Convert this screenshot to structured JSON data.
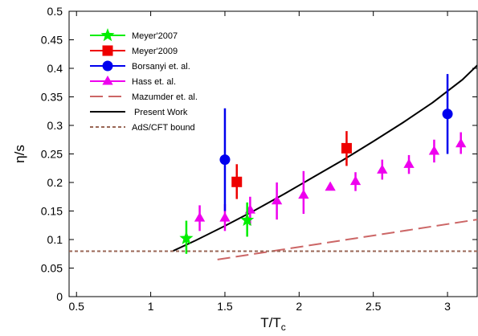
{
  "chart_data": {
    "type": "scatter",
    "xlabel": "T/T",
    "xlabel_sub": "c",
    "ylabel": "η/s",
    "xlim": [
      0.45,
      3.2
    ],
    "ylim": [
      0,
      0.5
    ],
    "xticks": [
      0.5,
      1,
      1.5,
      2,
      2.5,
      3
    ],
    "xtick_labels": [
      "0.5",
      "1",
      "1.5",
      "2",
      "2.5",
      "3"
    ],
    "yticks": [
      0,
      0.05,
      0.1,
      0.15,
      0.2,
      0.25,
      0.3,
      0.35,
      0.4,
      0.45,
      0.5
    ],
    "ytick_labels": [
      "0",
      "0.05",
      "0.1",
      "0.15",
      "0.2",
      "0.25",
      "0.3",
      "0.35",
      "0.4",
      "0.45",
      "0.5"
    ],
    "legend_position": "top-left",
    "series": [
      {
        "name": "Meyer'2007",
        "marker": "star",
        "color": "#00ee00",
        "points": [
          {
            "x": 1.24,
            "y": 0.102,
            "ylo": 0.075,
            "yhi": 0.133
          },
          {
            "x": 1.65,
            "y": 0.134,
            "ylo": 0.105,
            "yhi": 0.165
          }
        ]
      },
      {
        "name": "Meyer'2009",
        "marker": "square",
        "color": "#ee0000",
        "points": [
          {
            "x": 1.58,
            "y": 0.201,
            "ylo": 0.171,
            "yhi": 0.232
          },
          {
            "x": 2.32,
            "y": 0.26,
            "ylo": 0.229,
            "yhi": 0.29
          }
        ]
      },
      {
        "name": "Borsanyi et. al.",
        "marker": "circle",
        "color": "#0000ee",
        "points": [
          {
            "x": 1.5,
            "y": 0.24,
            "ylo": 0.15,
            "yhi": 0.33
          },
          {
            "x": 3.0,
            "y": 0.32,
            "ylo": 0.25,
            "yhi": 0.39
          }
        ]
      },
      {
        "name": "Hass et. al.",
        "marker": "triangle",
        "color": "#ee00ee",
        "points": [
          {
            "x": 1.33,
            "y": 0.138,
            "ylo": 0.115,
            "yhi": 0.16
          },
          {
            "x": 1.5,
            "y": 0.138,
            "ylo": 0.115,
            "yhi": 0.162
          },
          {
            "x": 1.67,
            "y": 0.152,
            "ylo": 0.125,
            "yhi": 0.175
          },
          {
            "x": 1.85,
            "y": 0.168,
            "ylo": 0.135,
            "yhi": 0.2
          },
          {
            "x": 2.03,
            "y": 0.178,
            "ylo": 0.145,
            "yhi": 0.22
          },
          {
            "x": 2.21,
            "y": 0.192,
            "ylo": 0.192,
            "yhi": 0.192
          },
          {
            "x": 2.38,
            "y": 0.202,
            "ylo": 0.185,
            "yhi": 0.218
          },
          {
            "x": 2.56,
            "y": 0.222,
            "ylo": 0.205,
            "yhi": 0.24
          },
          {
            "x": 2.74,
            "y": 0.232,
            "ylo": 0.215,
            "yhi": 0.248
          },
          {
            "x": 2.91,
            "y": 0.255,
            "ylo": 0.235,
            "yhi": 0.275
          },
          {
            "x": 3.09,
            "y": 0.268,
            "ylo": 0.25,
            "yhi": 0.288
          }
        ]
      },
      {
        "name": "Mazumder et. al.",
        "marker": "line",
        "line_style": "long-dash",
        "color": "#cc6666",
        "x": [
          1.45,
          3.2
        ],
        "y": [
          0.065,
          0.135
        ]
      },
      {
        "name": "Present Work",
        "marker": "line",
        "line_style": "solid",
        "color": "#000000",
        "x": [
          1.15,
          1.3,
          1.5,
          1.7,
          1.9,
          2.1,
          2.3,
          2.5,
          2.7,
          2.9,
          3.1,
          3.2
        ],
        "y": [
          0.08,
          0.098,
          0.124,
          0.151,
          0.18,
          0.21,
          0.24,
          0.272,
          0.305,
          0.34,
          0.38,
          0.405
        ]
      },
      {
        "name": "AdS/CFT bound",
        "marker": "line",
        "line_style": "short-dash",
        "color": "#996655",
        "x": [
          0.45,
          3.2
        ],
        "y": [
          0.0796,
          0.0796
        ]
      }
    ]
  }
}
